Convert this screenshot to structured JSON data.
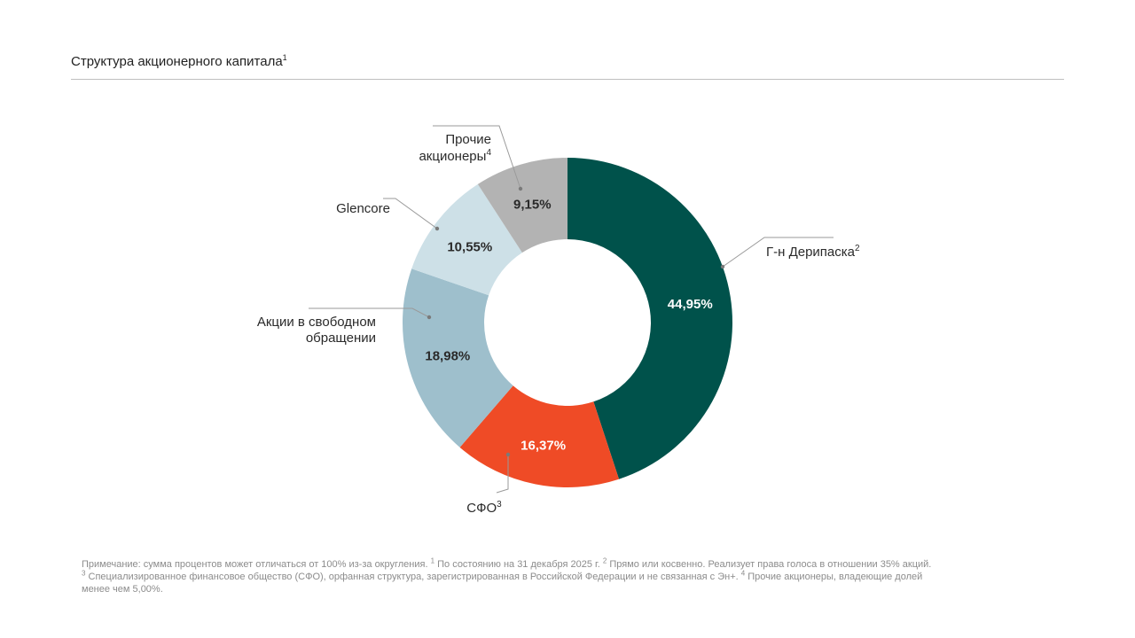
{
  "header": {
    "title": "Структура акционерного капитала",
    "title_sup": "1"
  },
  "chart_data": {
    "type": "pie",
    "variant": "donut",
    "title": "Структура акционерного капитала",
    "slices": [
      {
        "label": "Г-н Дерипаска",
        "sup": "2",
        "value": 44.95,
        "value_label": "44,95%",
        "color": "#00524b",
        "value_color": "#ffffff"
      },
      {
        "label": "СФО",
        "sup": "3",
        "value": 16.37,
        "value_label": "16,37%",
        "color": "#ef4b26",
        "value_color": "#ffffff"
      },
      {
        "label": "Акции в свободном обращении",
        "sup": "",
        "value": 18.98,
        "value_label": "18,98%",
        "color": "#9ebfcc",
        "value_color": "#2a2a2a"
      },
      {
        "label": "Glencore",
        "sup": "",
        "value": 10.55,
        "value_label": "10,55%",
        "color": "#cde0e7",
        "value_color": "#2a2a2a"
      },
      {
        "label": "Прочие акционеры",
        "sup": "4",
        "value": 9.15,
        "value_label": "9,15%",
        "color": "#b3b3b3",
        "value_color": "#2a2a2a"
      }
    ]
  },
  "footnote": {
    "line1_a": "Примечание: сумма процентов может отличаться от 100% из-за округления.",
    "n1": "1",
    "line1_b": "По состоянию на 31 декабря 2025 г.",
    "n2": "2",
    "line1_c": "Прямо или косвенно. Реализует права голоса в отношении 35% акций.",
    "n3": "3",
    "line2_a": "Специализированное финансовое общество (СФО), орфанная структура, зарегистрированная в Российской Федерации и не связанная с Эн+.",
    "n4": "4",
    "line2_b": "Прочие акционеры, владеющие долей",
    "line3": "менее чем 5,00%."
  }
}
